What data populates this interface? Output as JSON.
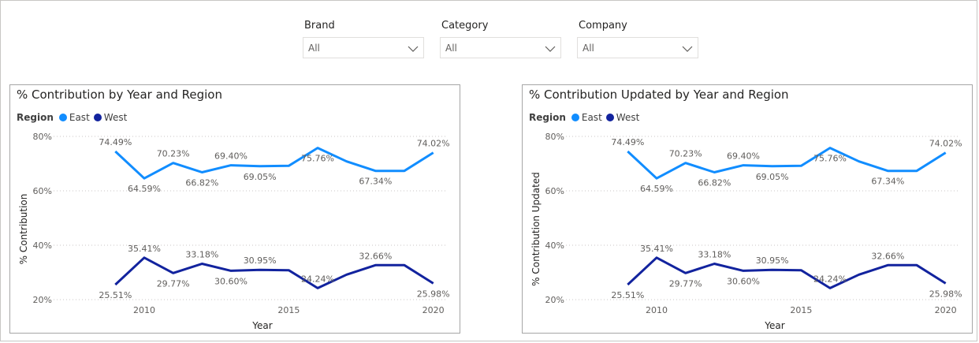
{
  "slicers": [
    {
      "title": "Brand",
      "value": "All"
    },
    {
      "title": "Category",
      "value": "All"
    },
    {
      "title": "Company",
      "value": "All"
    }
  ],
  "legend": {
    "title": "Region",
    "items": [
      {
        "label": "East",
        "color": "#118DFF"
      },
      {
        "label": "West",
        "color": "#12239E"
      }
    ]
  },
  "chart_data": [
    {
      "type": "line",
      "title": "% Contribution by Year and Region",
      "xlabel": "Year",
      "ylabel": "% Contribution",
      "x": [
        2009,
        2010,
        2011,
        2012,
        2013,
        2014,
        2015,
        2016,
        2017,
        2018,
        2019,
        2020
      ],
      "x_ticks": [
        "2010",
        "2015",
        "2020"
      ],
      "y_ticks": [
        "20%",
        "40%",
        "60%",
        "80%"
      ],
      "ylim": [
        20,
        80
      ],
      "grid": true,
      "series": [
        {
          "name": "East",
          "color": "#118DFF",
          "values": [
            74.49,
            64.59,
            70.23,
            66.82,
            69.4,
            69.05,
            69.2,
            75.76,
            70.8,
            67.34,
            67.34,
            74.02
          ],
          "labels": [
            "74.49%",
            "64.59%",
            "70.23%",
            "66.82%",
            "69.40%",
            "69.05%",
            "",
            "75.76%",
            "",
            "67.34%",
            "",
            "74.02%"
          ]
        },
        {
          "name": "West",
          "color": "#12239E",
          "values": [
            25.51,
            35.41,
            29.77,
            33.18,
            30.6,
            30.95,
            30.8,
            24.24,
            29.2,
            32.66,
            32.66,
            25.98
          ],
          "labels": [
            "25.51%",
            "35.41%",
            "29.77%",
            "33.18%",
            "30.60%",
            "30.95%",
            "",
            "24.24%",
            "",
            "32.66%",
            "",
            "25.98%"
          ]
        }
      ]
    },
    {
      "type": "line",
      "title": "% Contribution Updated by Year and Region",
      "xlabel": "Year",
      "ylabel": "% Contribution Updated",
      "x": [
        2009,
        2010,
        2011,
        2012,
        2013,
        2014,
        2015,
        2016,
        2017,
        2018,
        2019,
        2020
      ],
      "x_ticks": [
        "2010",
        "2015",
        "2020"
      ],
      "y_ticks": [
        "20%",
        "40%",
        "60%",
        "80%"
      ],
      "ylim": [
        20,
        80
      ],
      "grid": true,
      "series": [
        {
          "name": "East",
          "color": "#118DFF",
          "values": [
            74.49,
            64.59,
            70.23,
            66.82,
            69.4,
            69.05,
            69.2,
            75.76,
            70.8,
            67.34,
            67.34,
            74.02
          ],
          "labels": [
            "74.49%",
            "64.59%",
            "70.23%",
            "66.82%",
            "69.40%",
            "69.05%",
            "",
            "75.76%",
            "",
            "67.34%",
            "",
            "74.02%"
          ]
        },
        {
          "name": "West",
          "color": "#12239E",
          "values": [
            25.51,
            35.41,
            29.77,
            33.18,
            30.6,
            30.95,
            30.8,
            24.24,
            29.2,
            32.66,
            32.66,
            25.98
          ],
          "labels": [
            "25.51%",
            "35.41%",
            "29.77%",
            "33.18%",
            "30.60%",
            "30.95%",
            "",
            "24.24%",
            "",
            "32.66%",
            "",
            "25.98%"
          ]
        }
      ]
    }
  ]
}
